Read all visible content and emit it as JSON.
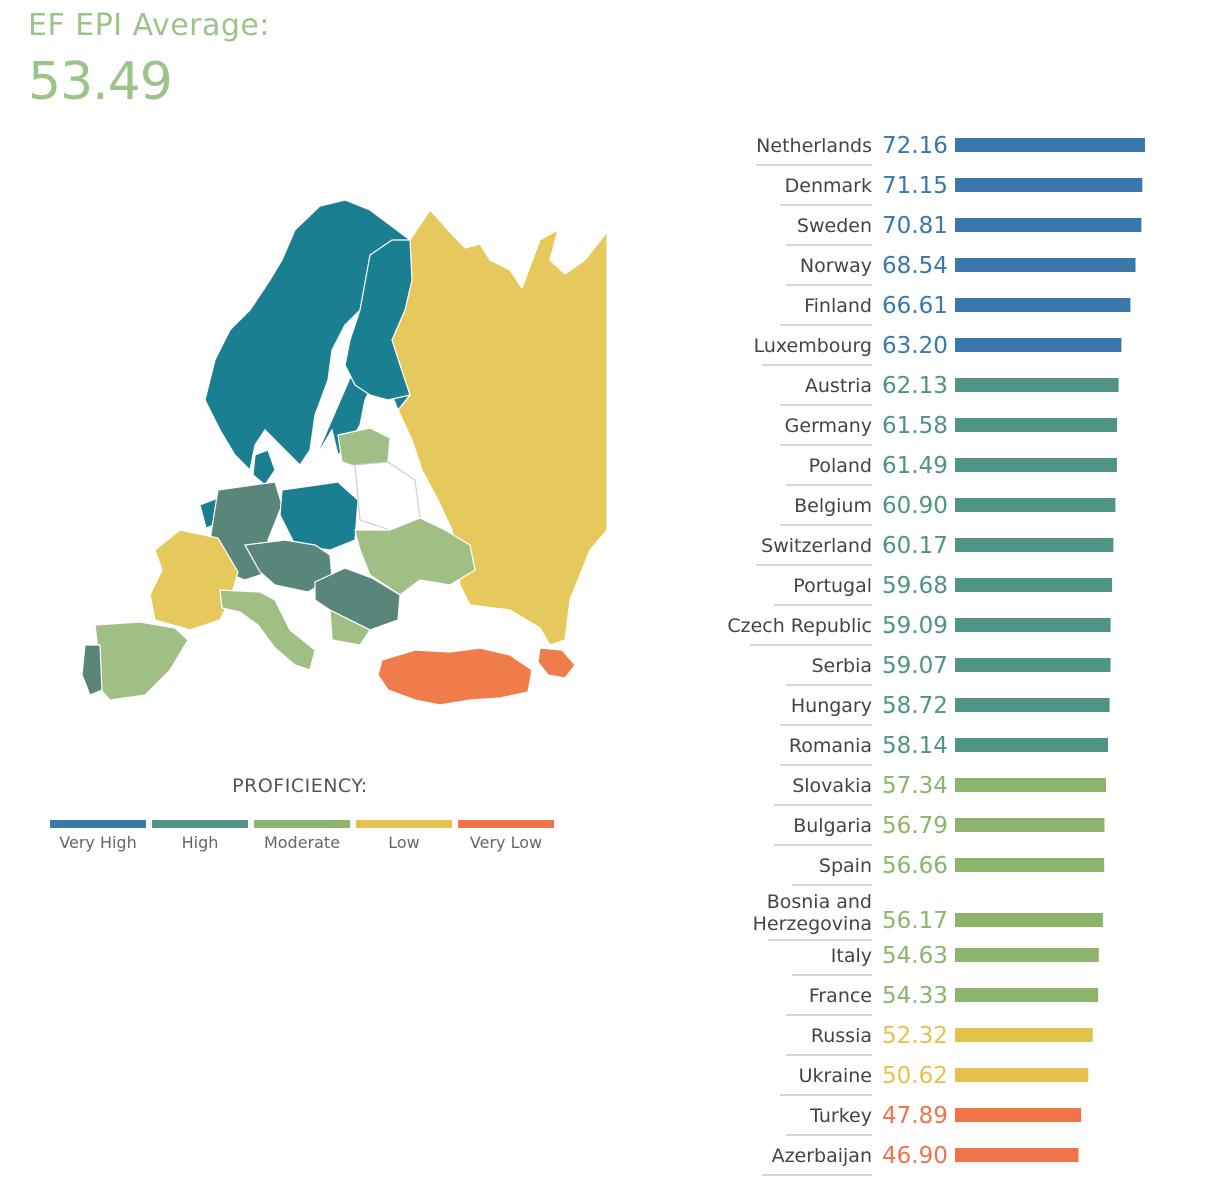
{
  "header": {
    "title": "EF EPI Average:",
    "average": "53.49"
  },
  "legend": {
    "title": "PROFICIENCY:",
    "items": [
      {
        "label": "Very High",
        "color": "#3a77ab"
      },
      {
        "label": "High",
        "color": "#4f9484"
      },
      {
        "label": "Moderate",
        "color": "#8cb46d"
      },
      {
        "label": "Low",
        "color": "#e5c24e"
      },
      {
        "label": "Very Low",
        "color": "#ef7549"
      }
    ]
  },
  "map_colors": {
    "very_high": "#1a7f91",
    "high": "#5a857b",
    "moderate": "#a0bf84",
    "low": "#e6c95c",
    "very_low": "#f07c4c"
  },
  "chart_data": {
    "type": "bar",
    "orientation": "horizontal",
    "categories": [
      "Netherlands",
      "Denmark",
      "Sweden",
      "Norway",
      "Finland",
      "Luxembourg",
      "Austria",
      "Germany",
      "Poland",
      "Belgium",
      "Switzerland",
      "Portugal",
      "Czech Republic",
      "Serbia",
      "Hungary",
      "Romania",
      "Slovakia",
      "Bulgaria",
      "Spain",
      "Bosnia and Herzegovina",
      "Italy",
      "France",
      "Russia",
      "Ukraine",
      "Turkey",
      "Azerbaijan"
    ],
    "values": [
      72.16,
      71.15,
      70.81,
      68.54,
      66.61,
      63.2,
      62.13,
      61.58,
      61.49,
      60.9,
      60.17,
      59.68,
      59.09,
      59.07,
      58.72,
      58.14,
      57.34,
      56.79,
      56.66,
      56.17,
      54.63,
      54.33,
      52.32,
      50.62,
      47.89,
      46.9
    ],
    "value_labels": [
      "72.16",
      "71.15",
      "70.81",
      "68.54",
      "66.61",
      "63.20",
      "62.13",
      "61.58",
      "61.49",
      "60.90",
      "60.17",
      "59.68",
      "59.09",
      "59.07",
      "58.72",
      "58.14",
      "57.34",
      "56.79",
      "56.66",
      "56.17",
      "54.63",
      "54.33",
      "52.32",
      "50.62",
      "47.89",
      "46.90"
    ],
    "proficiency": [
      "Very High",
      "Very High",
      "Very High",
      "Very High",
      "Very High",
      "Very High",
      "High",
      "High",
      "High",
      "High",
      "High",
      "High",
      "High",
      "High",
      "High",
      "High",
      "Moderate",
      "Moderate",
      "Moderate",
      "Moderate",
      "Moderate",
      "Moderate",
      "Low",
      "Low",
      "Very Low",
      "Very Low"
    ]
  }
}
